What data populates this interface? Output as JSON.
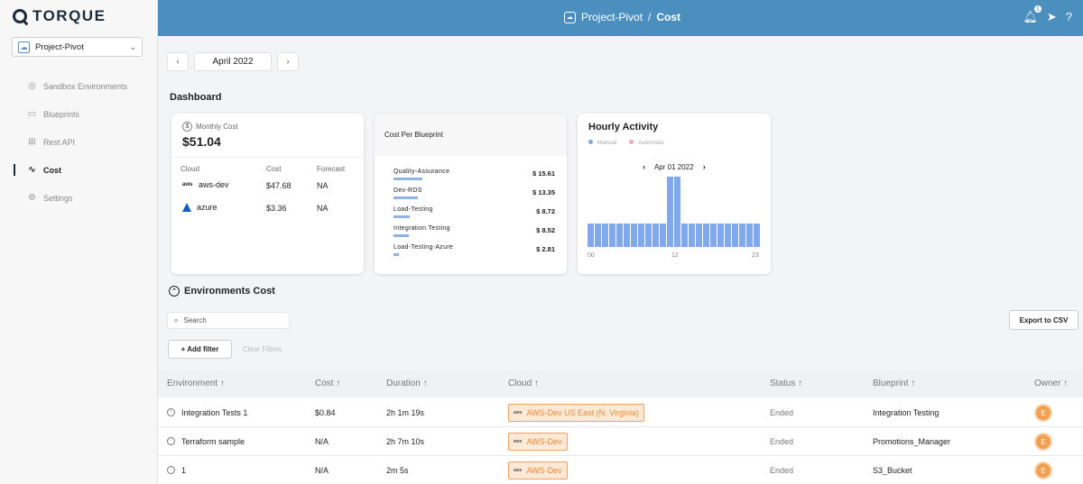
{
  "brand": "TORQUE",
  "project_selector": {
    "value": "Project-Pivot"
  },
  "sidebar": {
    "items": [
      {
        "label": "Sandbox Environments",
        "icon": "sandbox-icon",
        "active": false
      },
      {
        "label": "Blueprints",
        "icon": "blueprint-icon",
        "active": false
      },
      {
        "label": "Rest API",
        "icon": "api-icon",
        "active": false
      },
      {
        "label": "Cost",
        "icon": "pulse-icon",
        "active": true
      },
      {
        "label": "Settings",
        "icon": "gear-icon",
        "active": false
      }
    ]
  },
  "header": {
    "project": "Project-Pivot",
    "separator": "/",
    "page": "Cost",
    "notification_count": "1"
  },
  "date_nav": {
    "label": "April 2022"
  },
  "dashboard": {
    "title": "Dashboard",
    "monthly_cost": {
      "label": "Monthly Cost",
      "value": "$51.04",
      "col_cloud": "Cloud",
      "col_cost": "Cost",
      "col_forecast": "Forecast",
      "rows": [
        {
          "cloud": "aws-dev",
          "cost": "$47.68",
          "forecast": "NA"
        },
        {
          "cloud": "azure",
          "cost": "$3.36",
          "forecast": "NA"
        }
      ]
    },
    "cost_per_blueprint": {
      "title": "Cost Per Blueprint",
      "items": [
        {
          "name": "Quality-Assurance",
          "value": "$ 15.61",
          "amount": 15.61
        },
        {
          "name": "Dev-RDS",
          "value": "$ 13.35",
          "amount": 13.35
        },
        {
          "name": "Load-Testing",
          "value": "$ 8.72",
          "amount": 8.72
        },
        {
          "name": "Integration Testing",
          "value": "$ 8.52",
          "amount": 8.52
        },
        {
          "name": "Load-Testing-Azure",
          "value": "$ 2.81",
          "amount": 2.81
        }
      ]
    },
    "hourly_activity": {
      "title": "Hourly Activity",
      "legend_manual": "Manual",
      "legend_automatic": "Automatic",
      "date": "Apr 01 2022",
      "ticks": [
        "00",
        "12",
        "23"
      ],
      "manual_color": "#7fa9ec",
      "automatic_color": "#f4a6b8",
      "values": [
        1,
        1,
        1,
        1,
        1,
        1,
        1,
        1,
        1,
        1,
        1,
        3,
        3,
        1,
        1,
        1,
        1,
        1,
        1,
        1,
        1,
        1,
        1,
        1
      ]
    }
  },
  "environments": {
    "title": "Environments Cost",
    "search_placeholder": "Search",
    "export_label": "Export to CSV",
    "add_filter_label": "+ Add filter",
    "clear_filters_label": "Clear Filters",
    "columns": [
      "Environment",
      "Cost",
      "Duration",
      "Cloud",
      "Status",
      "Blueprint",
      "Owner"
    ],
    "rows": [
      {
        "name": "Integration Tests 1",
        "cost": "$0.84",
        "duration": "2h 1m 19s",
        "cloud": "AWS-Dev US East (N. Virginia)",
        "status": "Ended",
        "blueprint": "Integration Testing",
        "owner": "E"
      },
      {
        "name": "Terraform sample",
        "cost": "N/A",
        "duration": "2h 7m 10s",
        "cloud": "AWS-Dev",
        "status": "Ended",
        "blueprint": "Promotions_Manager",
        "owner": "E"
      },
      {
        "name": "1",
        "cost": "N/A",
        "duration": "2m 5s",
        "cloud": "AWS-Dev",
        "status": "Ended",
        "blueprint": "S3_Bucket",
        "owner": "E"
      }
    ]
  },
  "colors": {
    "topbar": "#4b8fbe",
    "bar": "#7fa9ec",
    "tag_border": "#f0a060",
    "tag_text": "#e48a38",
    "owner": "#f0a050"
  }
}
